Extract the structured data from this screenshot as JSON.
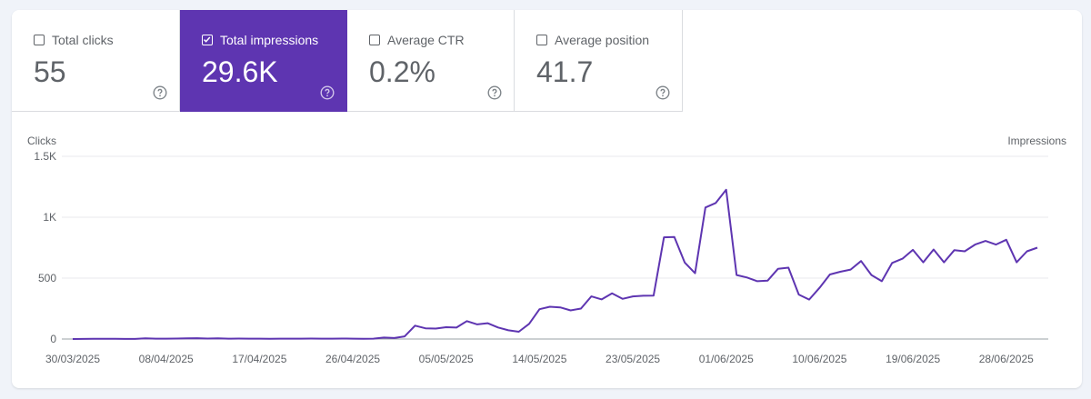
{
  "metrics": [
    {
      "label": "Total clicks",
      "value": "55",
      "checked": false
    },
    {
      "label": "Total impressions",
      "value": "29.6K",
      "checked": true
    },
    {
      "label": "Average CTR",
      "value": "0.2%",
      "checked": false
    },
    {
      "label": "Average position",
      "value": "41.7",
      "checked": false
    }
  ],
  "colors": {
    "accent": "#5e35b1",
    "line": "#5e35b1",
    "grid": "#e8eaed"
  },
  "chart_data": {
    "type": "line",
    "left_axis_label": "Clicks",
    "right_axis_label": "Impressions",
    "y_ticks": [
      "1.5K",
      "1K",
      "500",
      "0"
    ],
    "ylim": [
      0,
      1500
    ],
    "x_tick_labels": [
      "30/03/2025",
      "08/04/2025",
      "17/04/2025",
      "26/04/2025",
      "05/05/2025",
      "14/05/2025",
      "23/05/2025",
      "01/06/2025",
      "10/06/2025",
      "19/06/2025",
      "28/06/2025"
    ],
    "grid": true,
    "series": [
      {
        "name": "Impressions",
        "values": [
          0,
          1,
          2,
          2,
          2,
          1,
          1,
          5,
          3,
          3,
          4,
          6,
          7,
          4,
          5,
          3,
          4,
          3,
          3,
          2,
          3,
          3,
          3,
          4,
          3,
          3,
          4,
          3,
          2,
          3,
          12,
          8,
          22,
          110,
          88,
          86,
          97,
          94,
          147,
          120,
          130,
          95,
          72,
          60,
          125,
          245,
          265,
          260,
          235,
          250,
          350,
          325,
          375,
          330,
          350,
          355,
          357,
          835,
          838,
          628,
          540,
          1080,
          1117,
          1225,
          525,
          505,
          475,
          480,
          577,
          586,
          365,
          324,
          420,
          530,
          552,
          570,
          640,
          525,
          475,
          625,
          660,
          732,
          630,
          735,
          630,
          730,
          720,
          775,
          805,
          775,
          815,
          630,
          720,
          750
        ]
      }
    ]
  }
}
